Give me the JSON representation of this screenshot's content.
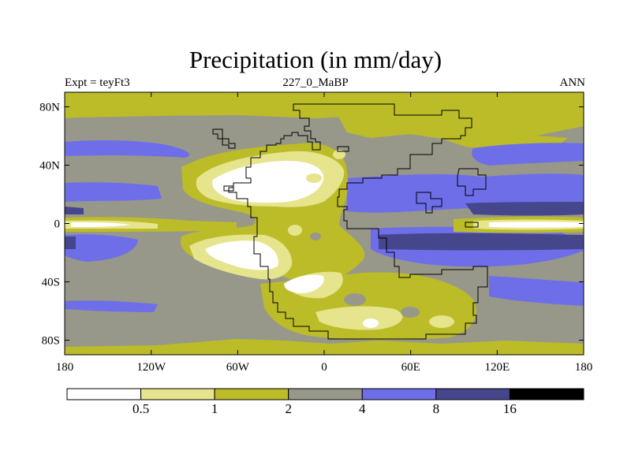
{
  "chart_data": {
    "type": "contour_map",
    "title": "Precipitation (in mm/day)",
    "left_label": "Expt = teyFt3",
    "center_label": "227_0_MaBP",
    "right_label": "ANN",
    "x_ticks": [
      "180",
      "120W",
      "60W",
      "0",
      "60E",
      "120E",
      "180"
    ],
    "x_values": [
      -180,
      -120,
      -60,
      0,
      60,
      120,
      180
    ],
    "y_ticks": [
      "80N",
      "40N",
      "0",
      "40S",
      "80S"
    ],
    "y_values": [
      80,
      40,
      0,
      -40,
      -80
    ],
    "xlim": [
      -180,
      180
    ],
    "ylim": [
      -90,
      90
    ],
    "levels": [
      "0.5",
      "1",
      "2",
      "4",
      "8",
      "16"
    ],
    "colors": [
      "#ffffff",
      "#e6e48c",
      "#bcbc28",
      "#98988a",
      "#6e6ee8",
      "#46468c",
      "#000000"
    ]
  }
}
